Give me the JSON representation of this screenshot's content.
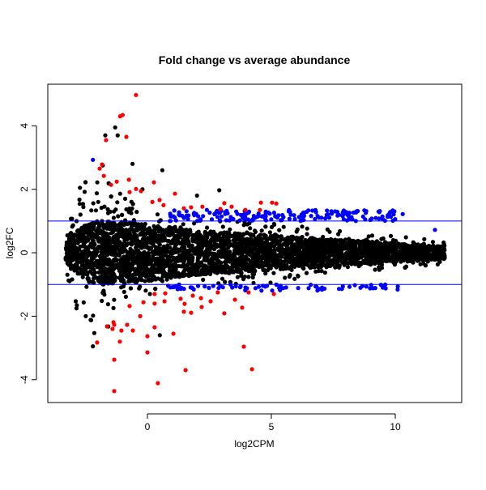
{
  "chart_data": {
    "type": "scatter",
    "title": "Fold change vs average abundance",
    "xlabel": "log2CPM",
    "ylabel": "log2FC",
    "xlim": [
      -4.02,
      12.68
    ],
    "ylim": [
      -4.72,
      5.31
    ],
    "xticks": [
      0,
      5,
      10
    ],
    "yticks": [
      -4,
      -2,
      0,
      2,
      4
    ],
    "hlines": [
      {
        "y": 1,
        "color": "#0000ff"
      },
      {
        "y": -1,
        "color": "#0000ff"
      }
    ],
    "colors": {
      "nonsig": "#000000",
      "sig_fc": "#0000ff",
      "sig_large": "#ff0000"
    },
    "bulk_envelope": {
      "x": [
        -3.3,
        -3,
        -2.5,
        -2,
        -1,
        0,
        2,
        5,
        8,
        11,
        12
      ],
      "core_halfwidth": [
        0.3,
        0.6,
        0.9,
        1.0,
        1.0,
        0.9,
        0.7,
        0.55,
        0.4,
        0.25,
        0.2
      ],
      "outer_halfwidth": [
        0.5,
        1.5,
        2.5,
        2.8,
        2.0,
        1.3,
        1.1,
        0.95,
        0.7,
        0.45,
        0.35
      ]
    },
    "red_points": [
      [
        -0.46,
        4.97
      ],
      [
        -1.1,
        4.3
      ],
      [
        -1.0,
        4.34
      ],
      [
        -1.67,
        3.55
      ],
      [
        -0.85,
        3.65
      ],
      [
        -1.83,
        2.78
      ],
      [
        -1.93,
        2.65
      ],
      [
        -1.76,
        2.42
      ],
      [
        -1.47,
        2.14
      ],
      [
        -1.24,
        2.24
      ],
      [
        -0.75,
        2.3
      ],
      [
        -0.72,
        1.91
      ],
      [
        -0.46,
        2.01
      ],
      [
        -0.26,
        1.94
      ],
      [
        0.26,
        2.22
      ],
      [
        0.2,
        1.6
      ],
      [
        0.49,
        1.66
      ],
      [
        0.65,
        1.5
      ],
      [
        1.11,
        1.86
      ],
      [
        1.47,
        1.4
      ],
      [
        1.76,
        1.43
      ],
      [
        2.22,
        1.45
      ],
      [
        2.94,
        1.38
      ],
      [
        3.1,
        1.56
      ],
      [
        3.4,
        1.45
      ],
      [
        3.95,
        1.35
      ],
      [
        4.58,
        1.58
      ],
      [
        4.54,
        1.35
      ],
      [
        5.03,
        1.58
      ],
      [
        5.2,
        1.55
      ],
      [
        -0.72,
        -1.68
      ],
      [
        -0.29,
        -2.0
      ],
      [
        -0.16,
        -1.56
      ],
      [
        0.29,
        -1.3
      ],
      [
        0.29,
        -1.6
      ],
      [
        0.72,
        -1.28
      ],
      [
        0.69,
        -1.53
      ],
      [
        1.34,
        -1.45
      ],
      [
        1.5,
        -1.61
      ],
      [
        1.47,
        -1.86
      ],
      [
        1.76,
        -1.89
      ],
      [
        1.83,
        -1.35
      ],
      [
        2.19,
        -1.71
      ],
      [
        2.16,
        -1.43
      ],
      [
        2.55,
        -1.53
      ],
      [
        2.84,
        -1.25
      ],
      [
        3.1,
        -1.91
      ],
      [
        3.53,
        -1.48
      ],
      [
        3.82,
        -1.73
      ],
      [
        4.08,
        -1.25
      ],
      [
        5.1,
        -1.3
      ],
      [
        -2.03,
        -2.83
      ],
      [
        -1.63,
        -2.32
      ],
      [
        -1.37,
        -2.19
      ],
      [
        -1.34,
        -2.27
      ],
      [
        -1.41,
        -2.4
      ],
      [
        -1.05,
        -2.45
      ],
      [
        -0.82,
        -2.27
      ],
      [
        -0.59,
        -2.45
      ],
      [
        -1.11,
        -2.8
      ],
      [
        0,
        -2.63
      ],
      [
        0.29,
        -2.35
      ],
      [
        1.05,
        -2.55
      ],
      [
        0,
        -3.14
      ],
      [
        -1.34,
        -3.37
      ],
      [
        -1.34,
        -4.36
      ],
      [
        0.42,
        -4.11
      ],
      [
        1.54,
        -3.7
      ],
      [
        3.89,
        -2.96
      ],
      [
        4.22,
        -3.67
      ]
    ],
    "black_outliers": [
      [
        -1.3,
        3.95
      ],
      [
        -1.2,
        3.7
      ],
      [
        -1.7,
        3.7
      ],
      [
        -0.6,
        2.8
      ],
      [
        -1.8,
        2.75
      ],
      [
        0.6,
        2.6
      ],
      [
        -0.2,
        2.0
      ],
      [
        2.9,
        1.97
      ],
      [
        -0.9,
        1.7
      ],
      [
        2.0,
        1.8
      ],
      [
        -2.2,
        -2.95
      ],
      [
        0.5,
        -2.6
      ],
      [
        0.1,
        -1.3
      ]
    ],
    "blue_points_extra": [
      [
        -2.2,
        2.93
      ],
      [
        10.3,
        1.22
      ],
      [
        11.6,
        0.72
      ]
    ]
  }
}
